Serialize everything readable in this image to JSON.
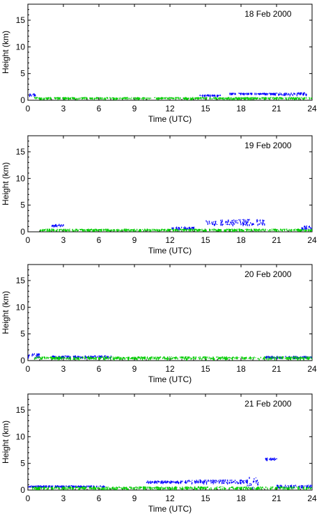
{
  "chart_data": [
    {
      "type": "scatter",
      "title": "18 Feb 2000",
      "xlabel": "Time (UTC)",
      "ylabel": "Height (km)",
      "xlim": [
        0,
        24
      ],
      "ylim": [
        0,
        18
      ],
      "xticks": [
        0,
        3,
        6,
        9,
        12,
        15,
        18,
        21,
        24
      ],
      "yticks": [
        0,
        5,
        10,
        15
      ],
      "grid": false,
      "series": [
        {
          "color": "#0000ff",
          "segments": [
            {
              "x": [
                0.0,
                0.6
              ],
              "y": [
                0.8,
                1.4
              ]
            },
            {
              "x": [
                14.5,
                16.3
              ],
              "y": [
                0.9,
                1.1
              ]
            },
            {
              "x": [
                17.0,
                20.8
              ],
              "y": [
                1.3,
                1.4
              ]
            },
            {
              "x": [
                20.8,
                23.5
              ],
              "y": [
                1.1,
                1.5
              ]
            }
          ]
        },
        {
          "color": "#00cc00",
          "segments": [
            {
              "x": [
                0.5,
                24.0
              ],
              "y": [
                0.4,
                0.6
              ]
            }
          ]
        }
      ]
    },
    {
      "type": "scatter",
      "title": "19 Feb 2000",
      "xlabel": "Time (UTC)",
      "ylabel": "Height (km)",
      "xlim": [
        0,
        24
      ],
      "ylim": [
        0,
        18
      ],
      "xticks": [
        0,
        3,
        6,
        9,
        12,
        15,
        18,
        21,
        24
      ],
      "yticks": [
        0,
        5,
        10,
        15
      ],
      "grid": false,
      "series": [
        {
          "color": "#0000ff",
          "segments": [
            {
              "x": [
                2.0,
                3.0
              ],
              "y": [
                1.2,
                1.5
              ]
            },
            {
              "x": [
                12.0,
                14.0
              ],
              "y": [
                0.6,
                1.0
              ]
            },
            {
              "x": [
                15.0,
                20.0
              ],
              "y": [
                1.4,
                2.4
              ]
            },
            {
              "x": [
                23.0,
                24.0
              ],
              "y": [
                0.6,
                1.2
              ]
            }
          ]
        },
        {
          "color": "#00cc00",
          "segments": [
            {
              "x": [
                1.0,
                24.0
              ],
              "y": [
                0.3,
                0.6
              ]
            }
          ]
        }
      ]
    },
    {
      "type": "scatter",
      "title": "20 Feb 2000",
      "xlabel": "Time (UTC)",
      "ylabel": "Height (km)",
      "xlim": [
        0,
        24
      ],
      "ylim": [
        0,
        18
      ],
      "xticks": [
        0,
        3,
        6,
        9,
        12,
        15,
        18,
        21,
        24
      ],
      "yticks": [
        0,
        5,
        10,
        15
      ],
      "grid": false,
      "series": [
        {
          "color": "#0000ff",
          "segments": [
            {
              "x": [
                0.0,
                1.0
              ],
              "y": [
                0.6,
                1.4
              ]
            },
            {
              "x": [
                2.0,
                7.0
              ],
              "y": [
                0.6,
                1.0
              ]
            },
            {
              "x": [
                20.0,
                24.0
              ],
              "y": [
                0.6,
                0.9
              ]
            }
          ]
        },
        {
          "color": "#00cc00",
          "segments": [
            {
              "x": [
                0.5,
                24.0
              ],
              "y": [
                0.4,
                0.8
              ]
            }
          ]
        }
      ]
    },
    {
      "type": "scatter",
      "title": "21 Feb 2000",
      "xlabel": "Time (UTC)",
      "ylabel": "Height (km)",
      "xlim": [
        0,
        24
      ],
      "ylim": [
        0,
        18
      ],
      "xticks": [
        0,
        3,
        6,
        9,
        12,
        15,
        18,
        21,
        24
      ],
      "yticks": [
        0,
        5,
        10,
        15
      ],
      "grid": false,
      "series": [
        {
          "color": "#0000ff",
          "segments": [
            {
              "x": [
                0.0,
                6.5
              ],
              "y": [
                0.7,
                0.9
              ]
            },
            {
              "x": [
                10.0,
                13.0
              ],
              "y": [
                1.5,
                1.8
              ]
            },
            {
              "x": [
                13.0,
                18.5
              ],
              "y": [
                1.4,
                2.0
              ]
            },
            {
              "x": [
                18.5,
                19.5
              ],
              "y": [
                0.4,
                2.5
              ]
            },
            {
              "x": [
                20.0,
                21.0
              ],
              "y": [
                5.8,
                6.1
              ]
            },
            {
              "x": [
                21.0,
                24.0
              ],
              "y": [
                0.6,
                1.0
              ]
            }
          ]
        },
        {
          "color": "#00cc00",
          "segments": [
            {
              "x": [
                0.3,
                24.0
              ],
              "y": [
                0.3,
                0.7
              ]
            }
          ]
        }
      ]
    }
  ]
}
